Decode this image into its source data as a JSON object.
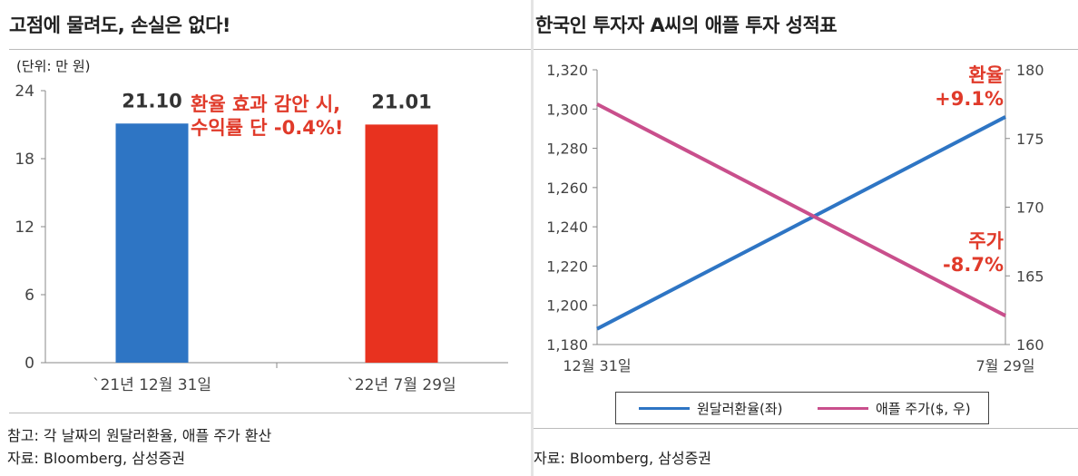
{
  "left": {
    "title": "고점에 물려도, 손실은 없다!",
    "unit_label": "(단위: 만 원)",
    "annotation": [
      "환율 효과 감안 시,",
      "수익률 단 -0.4%!"
    ],
    "notes": [
      "참고: 각 날짜의 원달러환율, 애플 주가 환산",
      "자료: Bloomberg, 삼성증권"
    ]
  },
  "right": {
    "title": "한국인 투자자 A씨의 애플 투자 성적표",
    "annotation_fx": [
      "환율",
      "+9.1%"
    ],
    "annotation_stock": [
      "주가",
      "-8.7%"
    ],
    "legend": [
      "원달러환율(좌)",
      "애플 주가($, 우)"
    ],
    "notes": [
      "자료: Bloomberg, 삼성증권"
    ]
  },
  "colors": {
    "blue": "#2e75c4",
    "red": "#e8321f",
    "pink": "#c94f8c",
    "accent_text": "#e03a2a"
  },
  "chart_data": [
    {
      "type": "bar",
      "title": "고점에 물려도, 손실은 없다!",
      "categories": [
        "`21년 12월 31일",
        "`22년 7월 29일"
      ],
      "values": [
        21.1,
        21.01
      ],
      "data_labels": [
        "21.10",
        "21.01"
      ],
      "bar_colors": [
        "#2e75c4",
        "#e8321f"
      ],
      "ylim": [
        0,
        24
      ],
      "yticks": [
        0,
        6,
        12,
        18,
        24
      ],
      "ylabel": "(단위: 만 원)",
      "grid": false
    },
    {
      "type": "line",
      "title": "한국인 투자자 A씨의 애플 투자 성적표",
      "x": [
        "12월 31일",
        "7월 29일"
      ],
      "series": [
        {
          "name": "원달러환율(좌)",
          "axis": "left",
          "values": [
            1188,
            1296
          ],
          "color": "#2e75c4"
        },
        {
          "name": "애플 주가($, 우)",
          "axis": "right",
          "values": [
            177.5,
            162.1
          ],
          "color": "#c94f8c"
        }
      ],
      "ylim_left": [
        1180,
        1320
      ],
      "yticks_left": [
        "1,180",
        "1,200",
        "1,220",
        "1,240",
        "1,260",
        "1,280",
        "1,300",
        "1,320"
      ],
      "ylim_right": [
        160,
        180
      ],
      "yticks_right": [
        "160",
        "165",
        "170",
        "175",
        "180"
      ],
      "grid": false,
      "legend_position": "bottom"
    }
  ]
}
